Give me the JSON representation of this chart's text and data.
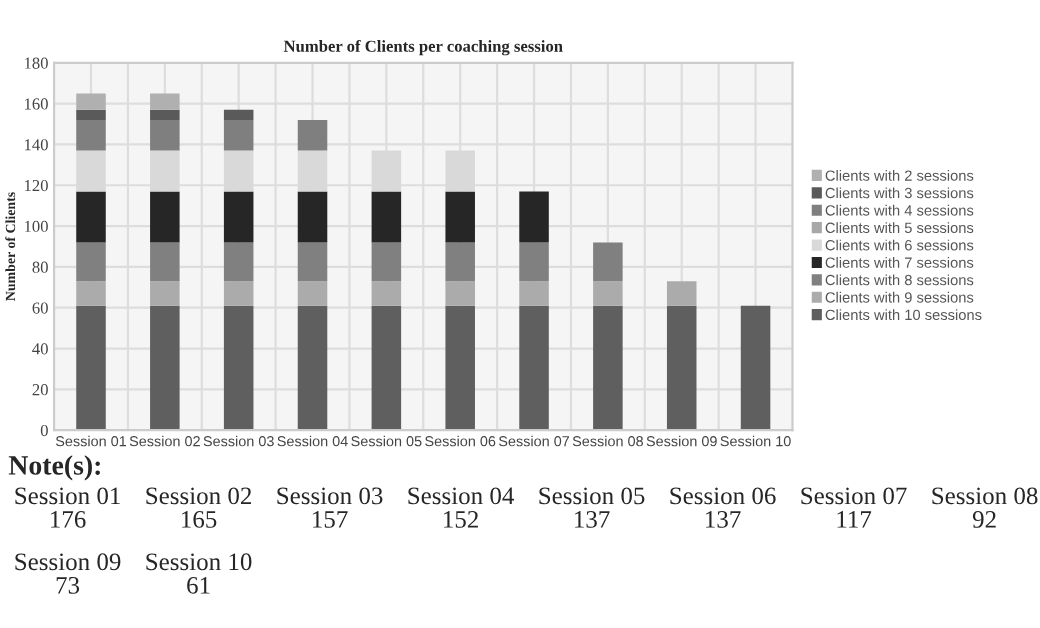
{
  "chart_data": {
    "type": "bar",
    "title": "Number of Clients per coaching session",
    "ylabel": "Number of Clients",
    "categories": [
      "Session 01",
      "Session 02",
      "Session 03",
      "Session 04",
      "Session 05",
      "Session 06",
      "Session 07",
      "Session 08",
      "Session 09",
      "Session 10"
    ],
    "stacked": true,
    "ylim": [
      0,
      180
    ],
    "yticks": [
      0,
      20,
      40,
      60,
      80,
      100,
      120,
      140,
      160,
      180
    ],
    "grid": true,
    "legend": "right",
    "series": [
      {
        "name": "Clients with 10 sessions",
        "color": "#5f5f5f",
        "values": [
          61,
          61,
          61,
          61,
          61,
          61,
          61,
          61,
          61,
          61
        ]
      },
      {
        "name": "Clients with 9 sessions",
        "color": "#ababab",
        "values": [
          12,
          12,
          12,
          12,
          12,
          12,
          12,
          12,
          12,
          null
        ]
      },
      {
        "name": "Clients with 8 sessions",
        "color": "#808080",
        "values": [
          19,
          19,
          19,
          19,
          19,
          19,
          19,
          19,
          null,
          null
        ]
      },
      {
        "name": "Clients with 7 sessions",
        "color": "#262626",
        "values": [
          25,
          25,
          25,
          25,
          25,
          25,
          25,
          null,
          null,
          null
        ]
      },
      {
        "name": "Clients with 6 sessions",
        "color": "#d9d9d9",
        "values": [
          20,
          20,
          20,
          20,
          20,
          20,
          null,
          null,
          null,
          null
        ]
      },
      {
        "name": "Clients with 5 sessions",
        "color": "#a8a8a8",
        "values": [
          0,
          0,
          0,
          0,
          0,
          null,
          null,
          null,
          null,
          null
        ]
      },
      {
        "name": "Clients with 4 sessions",
        "color": "#7f7f7f",
        "values": [
          15,
          15,
          15,
          15,
          null,
          null,
          null,
          null,
          null,
          null
        ]
      },
      {
        "name": "Clients with 3 sessions",
        "color": "#5a5a5a",
        "values": [
          5,
          5,
          5,
          null,
          null,
          null,
          null,
          null,
          null,
          null
        ]
      },
      {
        "name": "Clients with 2 sessions",
        "color": "#b0b0b0",
        "values": [
          8,
          8,
          null,
          null,
          null,
          null,
          null,
          null,
          null,
          null
        ]
      }
    ],
    "annotations": [
      "Note(s):",
      "Session 01\n176",
      "Session 02\n165",
      "Session 03\n157",
      "Session 04\n152",
      "Session 05\n137",
      "Session 06\n137",
      "Session 07\n117",
      "Session 08\n92",
      "Session 09\n73",
      "Session 10\n61"
    ]
  }
}
